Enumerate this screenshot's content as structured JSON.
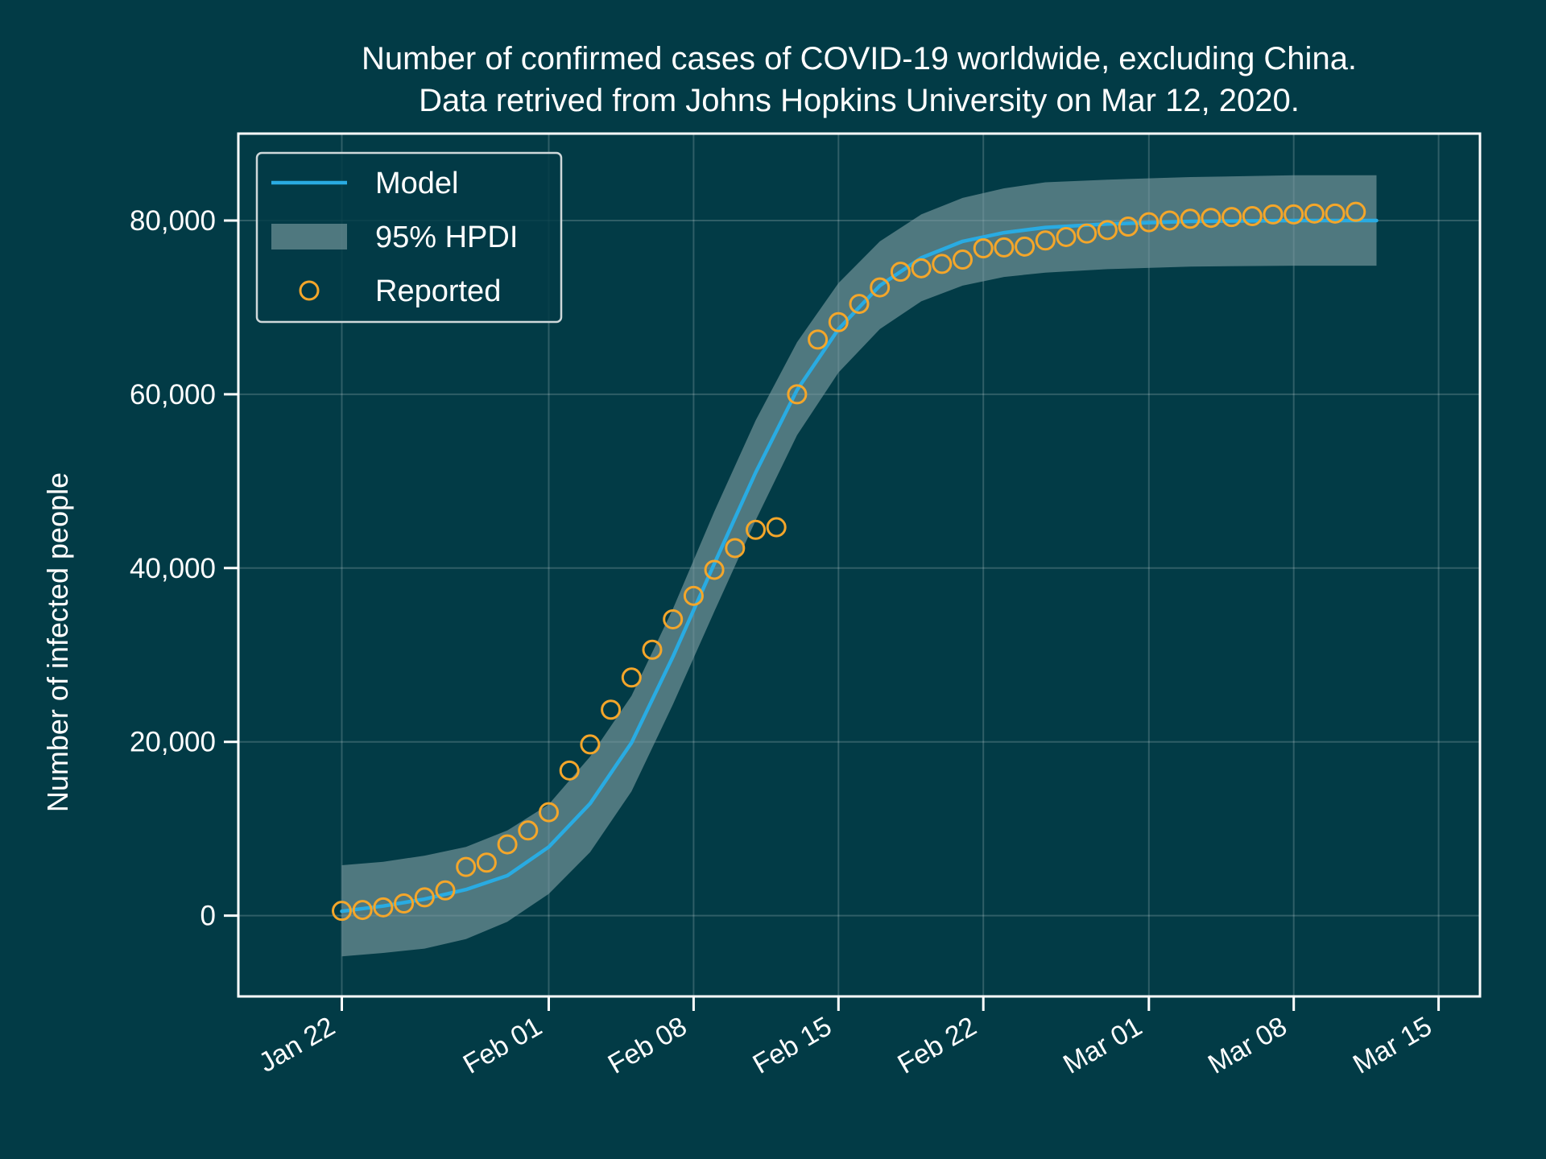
{
  "colors": {
    "background": "#023b46",
    "model": "#29abe2",
    "band": "#7f9ea3",
    "reported": "#f4a62a",
    "frame": "#ffffff",
    "grid": "#ffffff"
  },
  "chart_data": {
    "type": "line",
    "title": [
      "Number of confirmed cases of COVID-19 worldwide, excluding China.",
      "Data retrived from Johns Hopkins University on Mar 12, 2020."
    ],
    "xlabel": "",
    "ylabel": "Number of infected people",
    "x_range": [
      "2020-01-17",
      "2020-03-17"
    ],
    "ylim": [
      -9300,
      90000
    ],
    "x_ticks": [
      {
        "date": "2020-01-22",
        "label": "Jan 22"
      },
      {
        "date": "2020-02-01",
        "label": "Feb 01"
      },
      {
        "date": "2020-02-08",
        "label": "Feb 08"
      },
      {
        "date": "2020-02-15",
        "label": "Feb 15"
      },
      {
        "date": "2020-02-22",
        "label": "Feb 22"
      },
      {
        "date": "2020-03-01",
        "label": "Mar 01"
      },
      {
        "date": "2020-03-08",
        "label": "Mar 08"
      },
      {
        "date": "2020-03-15",
        "label": "Mar 15"
      }
    ],
    "y_ticks": [
      {
        "value": 0,
        "label": "0"
      },
      {
        "value": 20000,
        "label": "20,000"
      },
      {
        "value": 40000,
        "label": "40,000"
      },
      {
        "value": 60000,
        "label": "60,000"
      },
      {
        "value": 80000,
        "label": "80,000"
      }
    ],
    "grid": true,
    "legend": {
      "position": "upper-left",
      "entries": [
        {
          "label": "Model",
          "kind": "line"
        },
        {
          "label": "95% HPDI",
          "kind": "band"
        },
        {
          "label": "Reported",
          "kind": "marker"
        }
      ]
    },
    "series": [
      {
        "name": "Model",
        "kind": "line",
        "points": [
          [
            "2020-01-22",
            500
          ],
          [
            "2020-01-24",
            1100
          ],
          [
            "2020-01-26",
            1900
          ],
          [
            "2020-01-28",
            3000
          ],
          [
            "2020-01-30",
            4600
          ],
          [
            "2020-02-01",
            7900
          ],
          [
            "2020-02-03",
            12900
          ],
          [
            "2020-02-05",
            19900
          ],
          [
            "2020-02-07",
            29800
          ],
          [
            "2020-02-09",
            40500
          ],
          [
            "2020-02-11",
            51000
          ],
          [
            "2020-02-13",
            60500
          ],
          [
            "2020-02-15",
            67500
          ],
          [
            "2020-02-17",
            72500
          ],
          [
            "2020-02-19",
            75700
          ],
          [
            "2020-02-21",
            77600
          ],
          [
            "2020-02-23",
            78600
          ],
          [
            "2020-02-25",
            79200
          ],
          [
            "2020-02-28",
            79600
          ],
          [
            "2020-03-03",
            79900
          ],
          [
            "2020-03-08",
            80000
          ],
          [
            "2020-03-12",
            80000
          ]
        ]
      },
      {
        "name": "95% HPDI",
        "kind": "band",
        "upper": [
          [
            "2020-01-22",
            5800
          ],
          [
            "2020-01-24",
            6200
          ],
          [
            "2020-01-26",
            6900
          ],
          [
            "2020-01-28",
            7900
          ],
          [
            "2020-01-30",
            9800
          ],
          [
            "2020-02-01",
            12800
          ],
          [
            "2020-02-03",
            18300
          ],
          [
            "2020-02-05",
            25300
          ],
          [
            "2020-02-07",
            35300
          ],
          [
            "2020-02-09",
            46500
          ],
          [
            "2020-02-11",
            57000
          ],
          [
            "2020-02-13",
            66000
          ],
          [
            "2020-02-15",
            72800
          ],
          [
            "2020-02-17",
            77600
          ],
          [
            "2020-02-19",
            80700
          ],
          [
            "2020-02-21",
            82600
          ],
          [
            "2020-02-23",
            83700
          ],
          [
            "2020-02-25",
            84400
          ],
          [
            "2020-02-28",
            84700
          ],
          [
            "2020-03-03",
            85000
          ],
          [
            "2020-03-08",
            85200
          ],
          [
            "2020-03-12",
            85200
          ]
        ],
        "lower": [
          [
            "2020-01-22",
            -4700
          ],
          [
            "2020-01-24",
            -4300
          ],
          [
            "2020-01-26",
            -3800
          ],
          [
            "2020-01-28",
            -2700
          ],
          [
            "2020-01-30",
            -700
          ],
          [
            "2020-02-01",
            2500
          ],
          [
            "2020-02-03",
            7300
          ],
          [
            "2020-02-05",
            14300
          ],
          [
            "2020-02-07",
            24300
          ],
          [
            "2020-02-09",
            35000
          ],
          [
            "2020-02-11",
            45500
          ],
          [
            "2020-02-13",
            55300
          ],
          [
            "2020-02-15",
            62500
          ],
          [
            "2020-02-17",
            67500
          ],
          [
            "2020-02-19",
            70700
          ],
          [
            "2020-02-21",
            72500
          ],
          [
            "2020-02-23",
            73500
          ],
          [
            "2020-02-25",
            74000
          ],
          [
            "2020-02-28",
            74400
          ],
          [
            "2020-03-03",
            74700
          ],
          [
            "2020-03-08",
            74800
          ],
          [
            "2020-03-12",
            74800
          ]
        ]
      },
      {
        "name": "Reported",
        "kind": "scatter",
        "points": [
          [
            "2020-01-22",
            550
          ],
          [
            "2020-01-23",
            650
          ],
          [
            "2020-01-24",
            950
          ],
          [
            "2020-01-25",
            1400
          ],
          [
            "2020-01-26",
            2100
          ],
          [
            "2020-01-27",
            2900
          ],
          [
            "2020-01-28",
            5600
          ],
          [
            "2020-01-29",
            6100
          ],
          [
            "2020-01-30",
            8200
          ],
          [
            "2020-01-31",
            9800
          ],
          [
            "2020-02-01",
            11900
          ],
          [
            "2020-02-02",
            16700
          ],
          [
            "2020-02-03",
            19700
          ],
          [
            "2020-02-04",
            23700
          ],
          [
            "2020-02-05",
            27400
          ],
          [
            "2020-02-06",
            30600
          ],
          [
            "2020-02-07",
            34100
          ],
          [
            "2020-02-08",
            36800
          ],
          [
            "2020-02-09",
            39800
          ],
          [
            "2020-02-10",
            42300
          ],
          [
            "2020-02-11",
            44400
          ],
          [
            "2020-02-12",
            44700
          ],
          [
            "2020-02-13",
            60000
          ],
          [
            "2020-02-14",
            66300
          ],
          [
            "2020-02-15",
            68300
          ],
          [
            "2020-02-16",
            70400
          ],
          [
            "2020-02-17",
            72300
          ],
          [
            "2020-02-18",
            74100
          ],
          [
            "2020-02-19",
            74500
          ],
          [
            "2020-02-20",
            75000
          ],
          [
            "2020-02-21",
            75500
          ],
          [
            "2020-02-22",
            76800
          ],
          [
            "2020-02-23",
            76900
          ],
          [
            "2020-02-24",
            77000
          ],
          [
            "2020-02-25",
            77700
          ],
          [
            "2020-02-26",
            78100
          ],
          [
            "2020-02-27",
            78500
          ],
          [
            "2020-02-28",
            78900
          ],
          [
            "2020-02-29",
            79300
          ],
          [
            "2020-03-01",
            79800
          ],
          [
            "2020-03-02",
            80000
          ],
          [
            "2020-03-03",
            80200
          ],
          [
            "2020-03-04",
            80300
          ],
          [
            "2020-03-05",
            80400
          ],
          [
            "2020-03-06",
            80500
          ],
          [
            "2020-03-07",
            80700
          ],
          [
            "2020-03-08",
            80700
          ],
          [
            "2020-03-09",
            80800
          ],
          [
            "2020-03-10",
            80800
          ],
          [
            "2020-03-11",
            81000
          ]
        ]
      }
    ]
  }
}
